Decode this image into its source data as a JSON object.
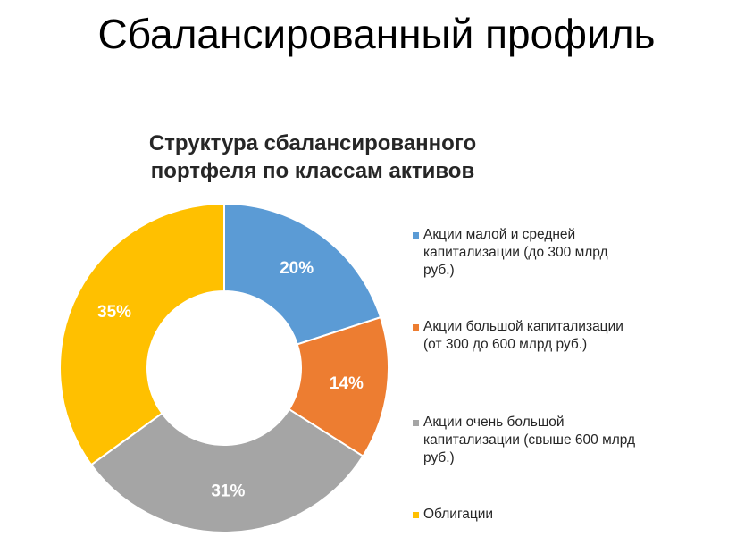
{
  "slide": {
    "title": "Сбалансированный профиль"
  },
  "chart_data": {
    "type": "pie",
    "donut": true,
    "title": "Структура сбалансированного\nпортфеля по классам активов",
    "legend_position": "right",
    "categories": [
      "Акции малой и средней\nкапитализации  (до 300 млрд\nруб.)",
      "Акции большой капитализации\n(от 300 до 600 млрд руб.)",
      "Акции очень большой\nкапитализации  (свыше 600 млрд\nруб.)",
      "Облигации"
    ],
    "values": [
      20,
      14,
      31,
      35
    ],
    "labels": [
      "20%",
      "14%",
      "31%",
      "35%"
    ],
    "colors": [
      "#5B9BD5",
      "#ED7D31",
      "#A5A5A5",
      "#FFC000"
    ],
    "label_color": "#FFFFFF"
  }
}
